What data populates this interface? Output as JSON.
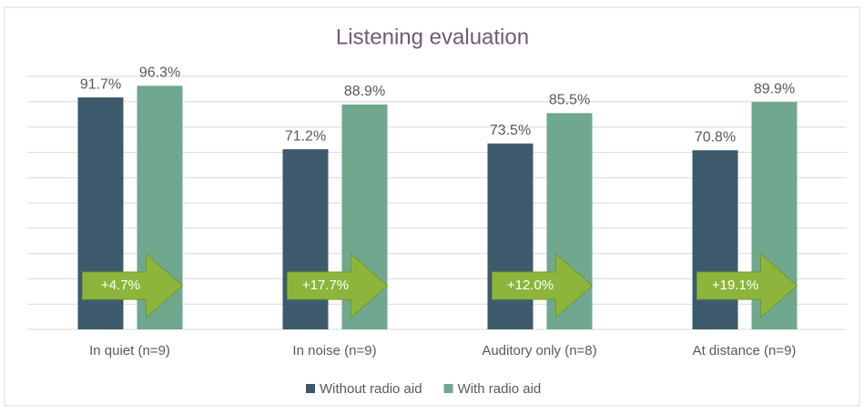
{
  "chart_data": {
    "type": "bar",
    "title": "Listening evaluation",
    "categories": [
      "In quiet (n=9)",
      "In noise (n=9)",
      "Auditory only (n=8)",
      "At distance (n=9)"
    ],
    "series": [
      {
        "name": "Without radio aid",
        "color": "#3d5a6c",
        "values": [
          91.7,
          71.2,
          73.5,
          70.8
        ],
        "value_labels": [
          "91.7%",
          "71.2%",
          "73.5%",
          "70.8%"
        ]
      },
      {
        "name": "With radio aid",
        "color": "#6fa88e",
        "values": [
          96.3,
          88.9,
          85.5,
          89.9
        ],
        "value_labels": [
          "96.3%",
          "88.9%",
          "85.5%",
          "89.9%"
        ]
      }
    ],
    "annotations": [
      "+4.7%",
      "+17.7%",
      "+12.0%",
      "+19.1%"
    ],
    "annotation_color": "#8db53c",
    "ylim": [
      0,
      100
    ],
    "yticks": [
      0,
      10,
      20,
      30,
      40,
      50,
      60,
      70,
      80,
      90,
      100
    ],
    "grid": true,
    "legend": "bottom"
  }
}
